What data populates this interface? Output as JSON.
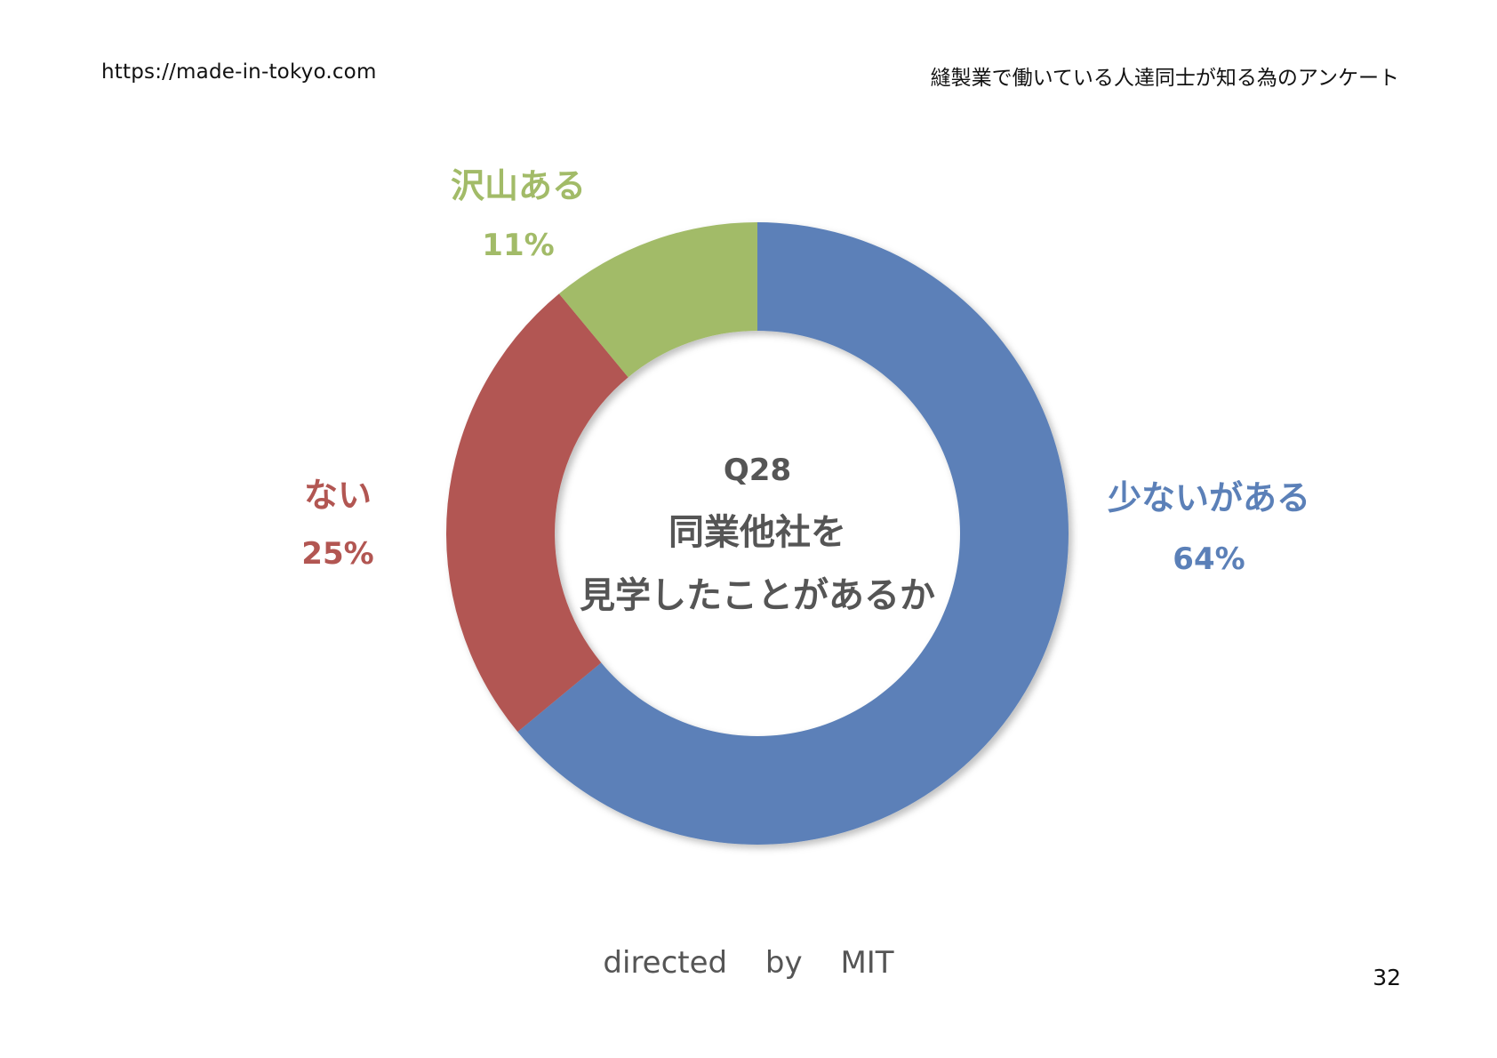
{
  "header": {
    "url": "https://made-in-tokyo.com",
    "subtitle": "縫製業で働いている人達同士が知る為のアンケート"
  },
  "chart_data": {
    "type": "pie",
    "donut": true,
    "title_lines": [
      "Q28",
      "同業他社を",
      "見学したことがあるか"
    ],
    "start": "top, clockwise",
    "slices": [
      {
        "label": "少ないがある",
        "percent_label": "64%",
        "value": 64,
        "color": "#5b80b8"
      },
      {
        "label": "ない",
        "percent_label": "25%",
        "value": 25,
        "color": "#b25652"
      },
      {
        "label": "沢山ある",
        "percent_label": "11%",
        "value": 11,
        "color": "#a2bb68"
      }
    ]
  },
  "footer": {
    "credit": "directed by MIT",
    "page_number": "32"
  }
}
